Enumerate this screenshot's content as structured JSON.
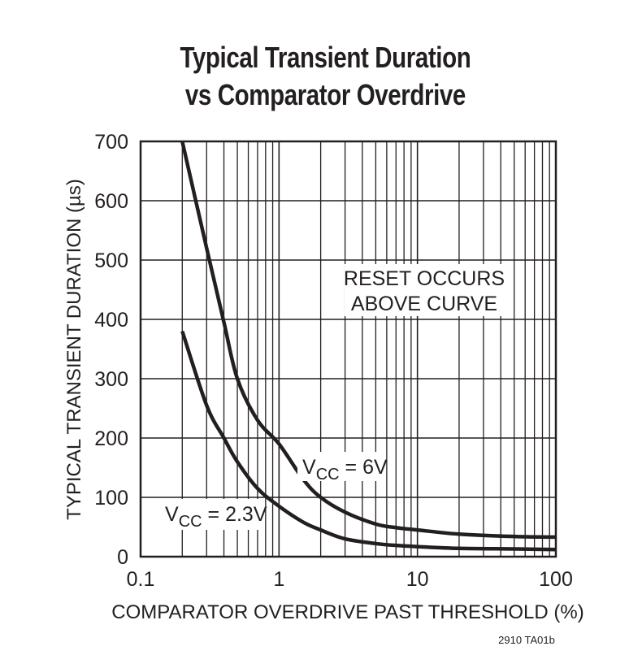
{
  "title": {
    "line1": "Typical Transient Duration",
    "line2": "vs Comparator Overdrive"
  },
  "figure_code": "2910 TA01b",
  "annotations": {
    "region_line1": "RESET OCCURS",
    "region_line2": "ABOVE CURVE",
    "series_6v": {
      "base": "V",
      "sub": "CC",
      "rest": " = 6V"
    },
    "series_23v": {
      "base": "V",
      "sub": "CC",
      "rest": " = 2.3V"
    }
  },
  "colors": {
    "curve": "#231f20",
    "grid": "#231f20",
    "background": "#ffffff"
  },
  "chart_data": {
    "type": "line",
    "title": "Typical Transient Duration vs Comparator Overdrive",
    "xlabel": "COMPARATOR OVERDRIVE PAST THRESHOLD (%)",
    "ylabel": "TYPICAL TRANSIENT DURATION (µs)",
    "xscale": "log",
    "xlim": [
      0.1,
      100
    ],
    "ylim": [
      0,
      700
    ],
    "xticks": [
      0.1,
      1,
      10,
      100
    ],
    "xtick_labels": [
      "0.1",
      "1",
      "10",
      "100"
    ],
    "yticks": [
      0,
      100,
      200,
      300,
      400,
      500,
      600,
      700
    ],
    "ytick_labels": [
      "0",
      "100",
      "200",
      "300",
      "400",
      "500",
      "600",
      "700"
    ],
    "grid": true,
    "legend": "inline labels on curves",
    "annotations": [
      "RESET OCCURS ABOVE CURVE"
    ],
    "series": [
      {
        "name": "VCC = 6V",
        "x": [
          0.2,
          0.3,
          0.4,
          0.5,
          0.7,
          1,
          1.5,
          2,
          3,
          5,
          7,
          10,
          20,
          50,
          100
        ],
        "values": [
          700,
          520,
          395,
          300,
          230,
          190,
          130,
          100,
          75,
          55,
          49,
          45,
          38,
          34,
          33
        ]
      },
      {
        "name": "VCC = 2.3V",
        "x": [
          0.2,
          0.3,
          0.4,
          0.5,
          0.7,
          1,
          1.5,
          2,
          3,
          5,
          7,
          10,
          20,
          50,
          100
        ],
        "values": [
          380,
          255,
          200,
          160,
          115,
          85,
          58,
          45,
          30,
          22,
          19,
          17,
          14,
          13,
          12
        ]
      }
    ]
  }
}
